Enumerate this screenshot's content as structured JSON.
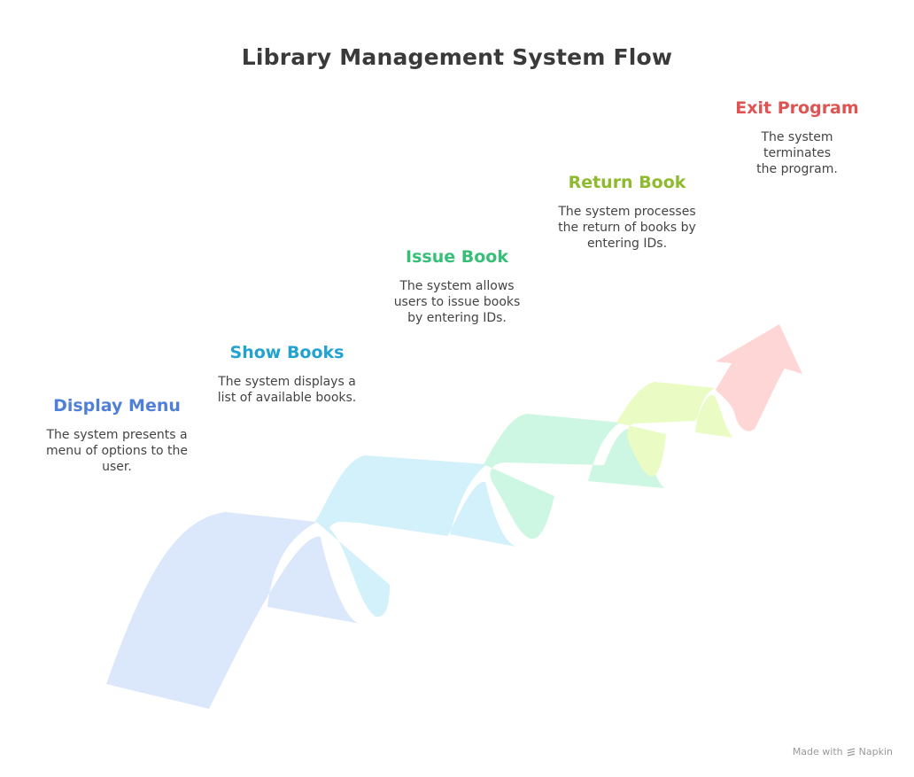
{
  "title": "Library Management System Flow",
  "steps": [
    {
      "title": "Display Menu",
      "description": "The system presents a menu of options to the user.",
      "color": "#4f7fd9",
      "fill": "#dbe7fb"
    },
    {
      "title": "Show Books",
      "description": "The system displays a list of available books.",
      "color": "#22a3cf",
      "fill": "#d2f1fb"
    },
    {
      "title": "Issue Book",
      "description": "The system allows users to issue books by entering IDs.",
      "color": "#36bf76",
      "fill": "#cdf7e3"
    },
    {
      "title": "Return Book",
      "description": "The system processes the return of books by entering IDs.",
      "color": "#8dbb2d",
      "fill": "#eafcc3"
    },
    {
      "title": "Exit Program",
      "description": "The system terminates the program.",
      "color": "#e05353",
      "fill": "#ffd6d6"
    }
  ],
  "footer": {
    "prefix": "Made with",
    "brand": "Napkin"
  }
}
